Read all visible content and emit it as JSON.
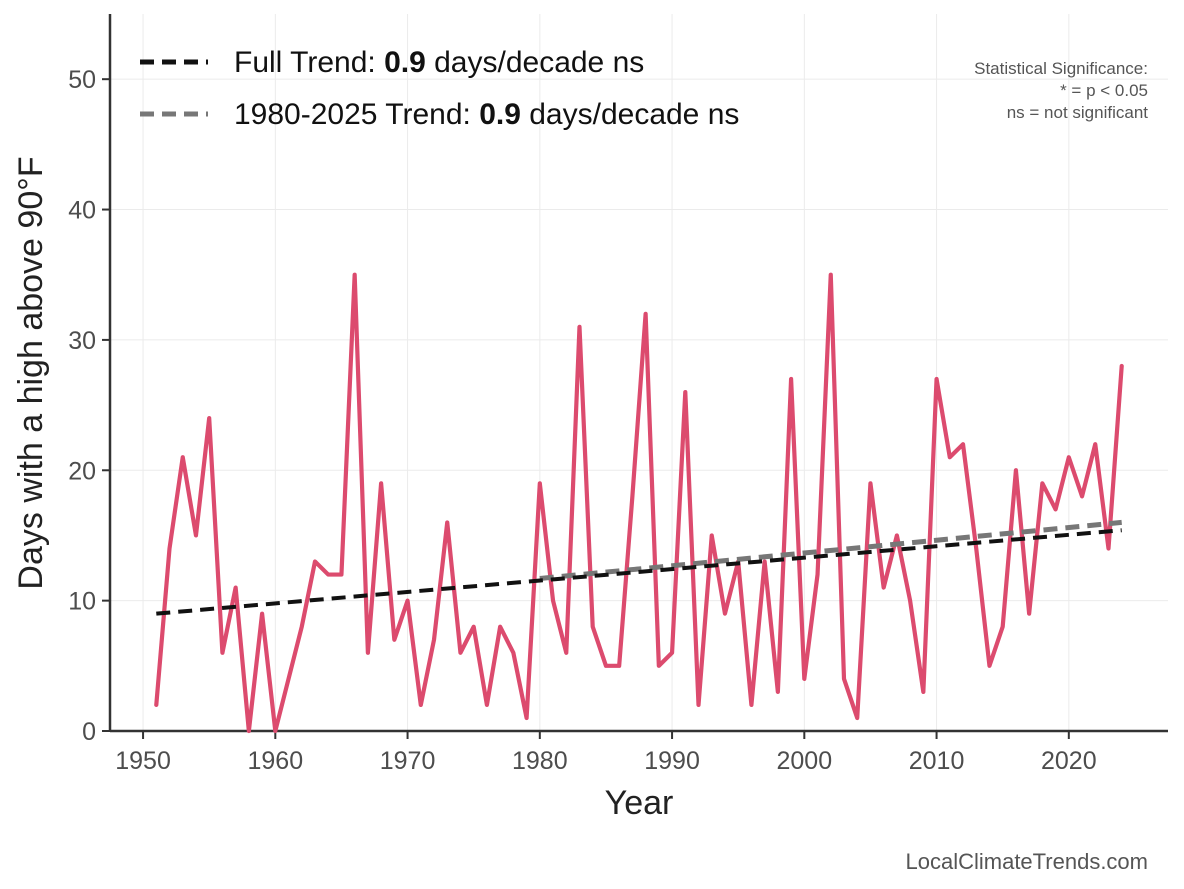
{
  "chart_data": {
    "type": "line",
    "xlabel": "Year",
    "ylabel": "Days with a high above 90°F",
    "xlim": [
      1947.5,
      2027.5
    ],
    "ylim": [
      0,
      55
    ],
    "x_ticks": [
      1950,
      1960,
      1970,
      1980,
      1990,
      2000,
      2010,
      2020
    ],
    "y_ticks": [
      0,
      10,
      20,
      30,
      40,
      50
    ],
    "grid": true,
    "legend_position": "top-left",
    "series": [
      {
        "color": "#dc4b6e",
        "x": [
          1951,
          1952,
          1953,
          1954,
          1955,
          1956,
          1957,
          1958,
          1959,
          1960,
          1961,
          1962,
          1963,
          1964,
          1965,
          1966,
          1967,
          1968,
          1969,
          1970,
          1971,
          1972,
          1973,
          1974,
          1975,
          1976,
          1977,
          1978,
          1979,
          1980,
          1981,
          1982,
          1983,
          1984,
          1985,
          1986,
          1987,
          1988,
          1989,
          1990,
          1991,
          1992,
          1993,
          1994,
          1995,
          1996,
          1997,
          1998,
          1999,
          2000,
          2001,
          2002,
          2003,
          2004,
          2005,
          2006,
          2007,
          2008,
          2009,
          2010,
          2011,
          2012,
          2013,
          2014,
          2015,
          2016,
          2017,
          2018,
          2019,
          2020,
          2021,
          2022,
          2023,
          2024
        ],
        "values": [
          2,
          14,
          21,
          15,
          24,
          6,
          11,
          0,
          9,
          0,
          4,
          8,
          13,
          12,
          12,
          35,
          6,
          19,
          7,
          10,
          2,
          7,
          16,
          6,
          8,
          2,
          8,
          6,
          1,
          19,
          10,
          6,
          31,
          8,
          5,
          5,
          18,
          32,
          5,
          6,
          26,
          2,
          15,
          9,
          13,
          2,
          13,
          3,
          27,
          4,
          12,
          35,
          4,
          1,
          19,
          11,
          15,
          10,
          3,
          27,
          21,
          22,
          14,
          5,
          8,
          20,
          9,
          19,
          17,
          21,
          18,
          22,
          14,
          28
        ]
      }
    ],
    "trend_lines": [
      {
        "label_prefix": "Full Trend: ",
        "label_value": "0.9",
        "label_suffix": " days/decade ns",
        "color": "#111111",
        "x": [
          1951,
          2024
        ],
        "values": [
          9.0,
          15.4
        ]
      },
      {
        "label_prefix": "1980-2025 Trend: ",
        "label_value": "0.9",
        "label_suffix": " days/decade ns",
        "color": "#777777",
        "x": [
          1980,
          2024
        ],
        "values": [
          11.7,
          16.0
        ]
      }
    ],
    "annotation": {
      "lines": [
        "Statistical Significance:",
        "* = p < 0.05",
        "ns = not significant"
      ]
    },
    "credit": "LocalClimateTrends.com"
  }
}
